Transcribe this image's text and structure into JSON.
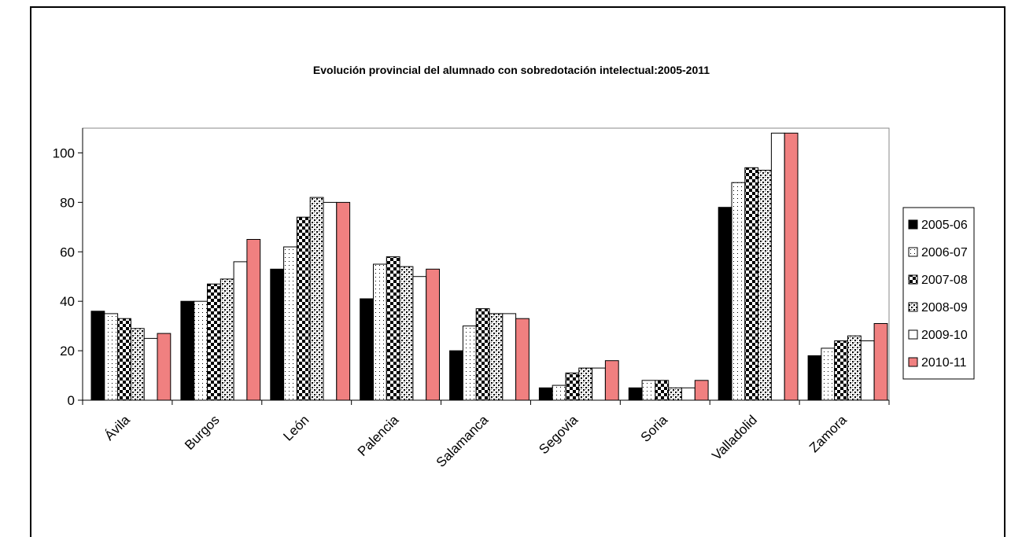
{
  "chart_data": {
    "type": "bar",
    "title": "Evolución provincial del alumnado con sobredotación intelectual:2005-2011",
    "xlabel": "",
    "ylabel": "",
    "ylim": [
      0,
      110
    ],
    "yticks": [
      "0",
      "20",
      "40",
      "60",
      "80",
      "100"
    ],
    "grid": false,
    "legend_position": "right",
    "categories": [
      "Ávila",
      "Burgos",
      "León",
      "Palencia",
      "Salamanca",
      "Segovia",
      "Soria",
      "Valladolid",
      "Zamora"
    ],
    "series": [
      {
        "name": "2005-06",
        "pattern": "solid-black",
        "values": [
          36,
          40,
          53,
          41,
          20,
          5,
          5,
          78,
          18
        ]
      },
      {
        "name": "2006-07",
        "pattern": "dots",
        "values": [
          35,
          40,
          62,
          55,
          30,
          6,
          8,
          88,
          21
        ]
      },
      {
        "name": "2007-08",
        "pattern": "checker",
        "values": [
          33,
          47,
          74,
          58,
          37,
          11,
          8,
          94,
          24
        ]
      },
      {
        "name": "2008-09",
        "pattern": "dotted-grid",
        "values": [
          29,
          49,
          82,
          54,
          35,
          13,
          5,
          93,
          26
        ]
      },
      {
        "name": "2009-10",
        "pattern": "white",
        "values": [
          25,
          56,
          80,
          50,
          35,
          13,
          5,
          108,
          24
        ]
      },
      {
        "name": "2010-11",
        "pattern": "salmon",
        "color": "#f08080",
        "values": [
          27,
          65,
          80,
          53,
          33,
          16,
          8,
          108,
          31
        ]
      }
    ]
  }
}
